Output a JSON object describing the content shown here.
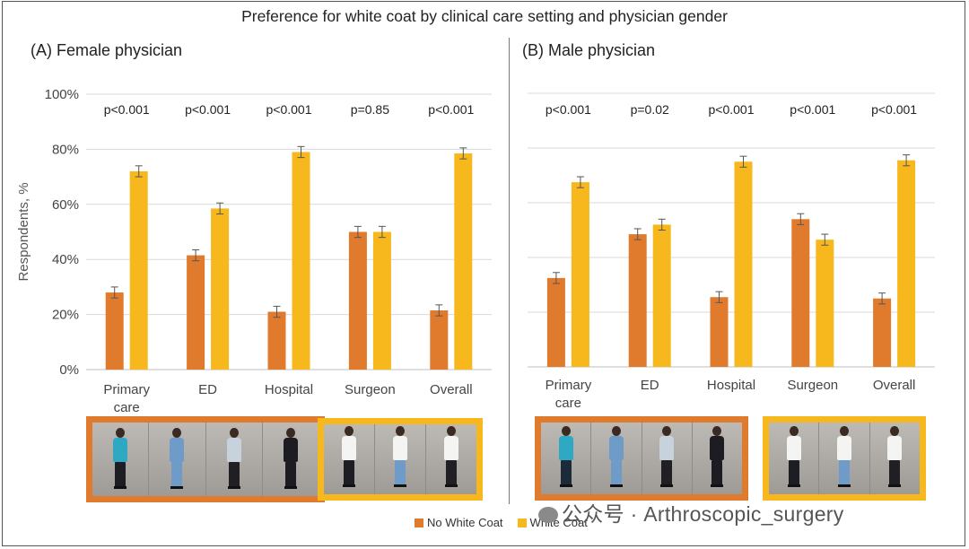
{
  "title": "Preference for white coat by clinical care setting and physician gender",
  "legend": [
    {
      "label": "No White Coat",
      "color": "#e07b2e"
    },
    {
      "label": "White Coat",
      "color": "#f6b81d"
    }
  ],
  "watermark": "公众号 · Arthroscopic_surgery",
  "chart_data": [
    {
      "type": "bar",
      "title": "(A) Female physician",
      "ylabel": "Respondents, %",
      "ylim": [
        0,
        100
      ],
      "yticks": [
        "0%",
        "20%",
        "40%",
        "60%",
        "80%",
        "100%"
      ],
      "tick_values": [
        0,
        20,
        40,
        60,
        80,
        100
      ],
      "show_ytick_labels": true,
      "grid": true,
      "categories": [
        [
          "Primary",
          "care"
        ],
        [
          "ED"
        ],
        [
          "Hospital"
        ],
        [
          "Surgeon"
        ],
        [
          "Overall"
        ]
      ],
      "p_values": [
        "p<0.001",
        "p<0.001",
        "p<0.001",
        "p=0.85",
        "p<0.001"
      ],
      "series": [
        {
          "name": "No White Coat",
          "color": "#e07b2e",
          "values": [
            28,
            41.5,
            21,
            50,
            21.5
          ],
          "error": [
            2,
            2,
            2,
            2,
            2
          ]
        },
        {
          "name": "White Coat",
          "color": "#f6b81d",
          "values": [
            72,
            58.5,
            79,
            50,
            78.5
          ],
          "error": [
            2,
            2,
            2,
            2,
            2
          ]
        }
      ]
    },
    {
      "type": "bar",
      "title": "(B) Male physician",
      "ylim": [
        0,
        100
      ],
      "tick_values": [
        0,
        20,
        40,
        60,
        80,
        100
      ],
      "show_ytick_labels": false,
      "grid": true,
      "categories": [
        [
          "Primary",
          "care"
        ],
        [
          "ED"
        ],
        [
          "Hospital"
        ],
        [
          "Surgeon"
        ],
        [
          "Overall"
        ]
      ],
      "p_values": [
        "p<0.001",
        "p=0.02",
        "p<0.001",
        "p<0.001",
        "p<0.001"
      ],
      "series": [
        {
          "name": "No White Coat",
          "color": "#e07b2e",
          "values": [
            32.5,
            48.5,
            25.5,
            54,
            25
          ],
          "error": [
            2,
            2,
            2,
            2,
            2
          ]
        },
        {
          "name": "White Coat",
          "color": "#f6b81d",
          "values": [
            67.5,
            52,
            75,
            46.5,
            75.5
          ],
          "error": [
            2,
            2,
            2,
            2,
            2
          ]
        }
      ]
    }
  ],
  "photo_groups": [
    {
      "panel": "female",
      "style": "orange",
      "figures": [
        {
          "top": "#2fa8c4",
          "bottom": "#1d1d24"
        },
        {
          "top": "#6f9bc9",
          "bottom": "#6f9bc9"
        },
        {
          "top": "#c7d2dc",
          "bottom": "#1f1f24"
        },
        {
          "top": "#1c1c22",
          "bottom": "#1c1c22"
        }
      ]
    },
    {
      "panel": "female",
      "style": "yellow",
      "figures": [
        {
          "top": "#f4f4f2",
          "bottom": "#1d1d24"
        },
        {
          "top": "#f4f4f2",
          "bottom": "#6f9bc9"
        },
        {
          "top": "#f4f4f2",
          "bottom": "#1f1f24"
        }
      ]
    },
    {
      "panel": "male",
      "style": "orange",
      "figures": [
        {
          "top": "#2fa8c4",
          "bottom": "#1d2a3a"
        },
        {
          "top": "#6f9bc9",
          "bottom": "#6f9bc9"
        },
        {
          "top": "#c7d2dc",
          "bottom": "#1f1f24"
        },
        {
          "top": "#1c1c22",
          "bottom": "#1c1c22"
        }
      ]
    },
    {
      "panel": "male",
      "style": "yellow",
      "figures": [
        {
          "top": "#f4f4f2",
          "bottom": "#1d1d24"
        },
        {
          "top": "#f4f4f2",
          "bottom": "#6f9bc9"
        },
        {
          "top": "#f4f4f2",
          "bottom": "#1f1f24"
        }
      ]
    }
  ]
}
